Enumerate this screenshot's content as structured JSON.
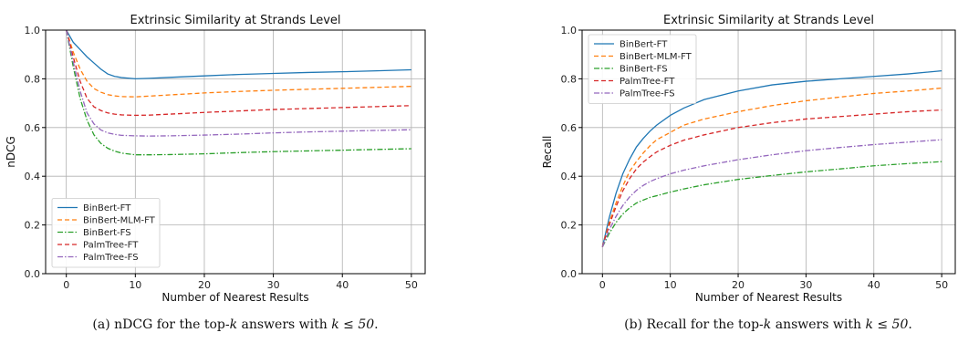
{
  "chart_data": [
    {
      "type": "line",
      "title": "Extrinsic Similarity at Strands Level",
      "xlabel": "Number of Nearest Results",
      "ylabel": "nDCG",
      "xlim": [
        -3,
        52
      ],
      "ylim": [
        0.0,
        1.0
      ],
      "xticks": [
        0,
        10,
        20,
        30,
        40,
        50
      ],
      "yticks": [
        0.0,
        0.2,
        0.4,
        0.6,
        0.8,
        1.0
      ],
      "grid": true,
      "legend_position": "lower-left",
      "caption": {
        "label": "(a)",
        "text_before": "nDCG for the top-",
        "k": "k",
        "text_middle": " answers with ",
        "relation": "k ≤ 50",
        "text_after": "."
      },
      "x": [
        0,
        1,
        2,
        3,
        4,
        5,
        6,
        7,
        8,
        10,
        12,
        15,
        20,
        25,
        30,
        35,
        40,
        45,
        50
      ],
      "series": [
        {
          "name": "BinBert-FT",
          "color": "#1f77b4",
          "dash": "solid",
          "values": [
            1.0,
            0.95,
            0.92,
            0.89,
            0.865,
            0.84,
            0.82,
            0.81,
            0.805,
            0.8,
            0.802,
            0.806,
            0.812,
            0.818,
            0.822,
            0.826,
            0.829,
            0.833,
            0.837
          ]
        },
        {
          "name": "BinBert-MLM-FT",
          "color": "#ff7f0e",
          "dash": "dashed",
          "values": [
            1.0,
            0.91,
            0.84,
            0.79,
            0.76,
            0.745,
            0.735,
            0.73,
            0.727,
            0.726,
            0.729,
            0.734,
            0.742,
            0.748,
            0.753,
            0.757,
            0.761,
            0.765,
            0.769
          ]
        },
        {
          "name": "BinBert-FS",
          "color": "#2ca02c",
          "dash": "dashdot",
          "values": [
            1.0,
            0.85,
            0.72,
            0.63,
            0.57,
            0.535,
            0.515,
            0.503,
            0.495,
            0.488,
            0.488,
            0.489,
            0.492,
            0.497,
            0.501,
            0.504,
            0.507,
            0.51,
            0.513
          ]
        },
        {
          "name": "PalmTree-FT",
          "color": "#d62728",
          "dash": "dashed",
          "values": [
            1.0,
            0.89,
            0.79,
            0.72,
            0.685,
            0.67,
            0.66,
            0.655,
            0.652,
            0.65,
            0.651,
            0.655,
            0.662,
            0.668,
            0.674,
            0.678,
            0.682,
            0.686,
            0.69
          ]
        },
        {
          "name": "PalmTree-FS",
          "color": "#9467bd",
          "dash": "dashdot",
          "values": [
            1.0,
            0.87,
            0.75,
            0.66,
            0.615,
            0.59,
            0.578,
            0.572,
            0.568,
            0.566,
            0.565,
            0.566,
            0.569,
            0.573,
            0.578,
            0.582,
            0.585,
            0.588,
            0.591
          ]
        }
      ]
    },
    {
      "type": "line",
      "title": "Extrinsic Similarity at Strands Level",
      "xlabel": "Number of Nearest Results",
      "ylabel": "Recall",
      "xlim": [
        -3,
        52
      ],
      "ylim": [
        0.0,
        1.0
      ],
      "xticks": [
        0,
        10,
        20,
        30,
        40,
        50
      ],
      "yticks": [
        0.0,
        0.2,
        0.4,
        0.6,
        0.8,
        1.0
      ],
      "grid": true,
      "legend_position": "upper-left",
      "caption": {
        "label": "(b)",
        "text_before": "Recall for the top-",
        "k": "k",
        "text_middle": " answers with ",
        "relation": "k ≤ 50",
        "text_after": "."
      },
      "x": [
        0,
        1,
        2,
        3,
        4,
        5,
        6,
        7,
        8,
        10,
        12,
        15,
        20,
        25,
        30,
        35,
        40,
        45,
        50
      ],
      "series": [
        {
          "name": "BinBert-FT",
          "color": "#1f77b4",
          "dash": "solid",
          "values": [
            0.11,
            0.23,
            0.33,
            0.41,
            0.47,
            0.52,
            0.555,
            0.585,
            0.61,
            0.65,
            0.68,
            0.715,
            0.75,
            0.775,
            0.79,
            0.8,
            0.81,
            0.82,
            0.833
          ]
        },
        {
          "name": "BinBert-MLM-FT",
          "color": "#ff7f0e",
          "dash": "dashed",
          "values": [
            0.11,
            0.21,
            0.29,
            0.36,
            0.42,
            0.46,
            0.495,
            0.525,
            0.55,
            0.58,
            0.61,
            0.635,
            0.665,
            0.69,
            0.71,
            0.725,
            0.74,
            0.75,
            0.762
          ]
        },
        {
          "name": "BinBert-FS",
          "color": "#2ca02c",
          "dash": "dashdot",
          "values": [
            0.11,
            0.165,
            0.21,
            0.245,
            0.27,
            0.29,
            0.302,
            0.313,
            0.32,
            0.335,
            0.348,
            0.365,
            0.387,
            0.403,
            0.418,
            0.43,
            0.443,
            0.452,
            0.46
          ]
        },
        {
          "name": "PalmTree-FT",
          "color": "#d62728",
          "dash": "dashed",
          "values": [
            0.11,
            0.2,
            0.275,
            0.34,
            0.39,
            0.43,
            0.458,
            0.48,
            0.5,
            0.527,
            0.548,
            0.57,
            0.6,
            0.62,
            0.635,
            0.645,
            0.655,
            0.665,
            0.672
          ]
        },
        {
          "name": "PalmTree-FS",
          "color": "#9467bd",
          "dash": "dashdot",
          "values": [
            0.11,
            0.18,
            0.235,
            0.28,
            0.315,
            0.342,
            0.362,
            0.378,
            0.39,
            0.41,
            0.425,
            0.443,
            0.468,
            0.488,
            0.505,
            0.518,
            0.53,
            0.54,
            0.55
          ]
        }
      ]
    }
  ]
}
